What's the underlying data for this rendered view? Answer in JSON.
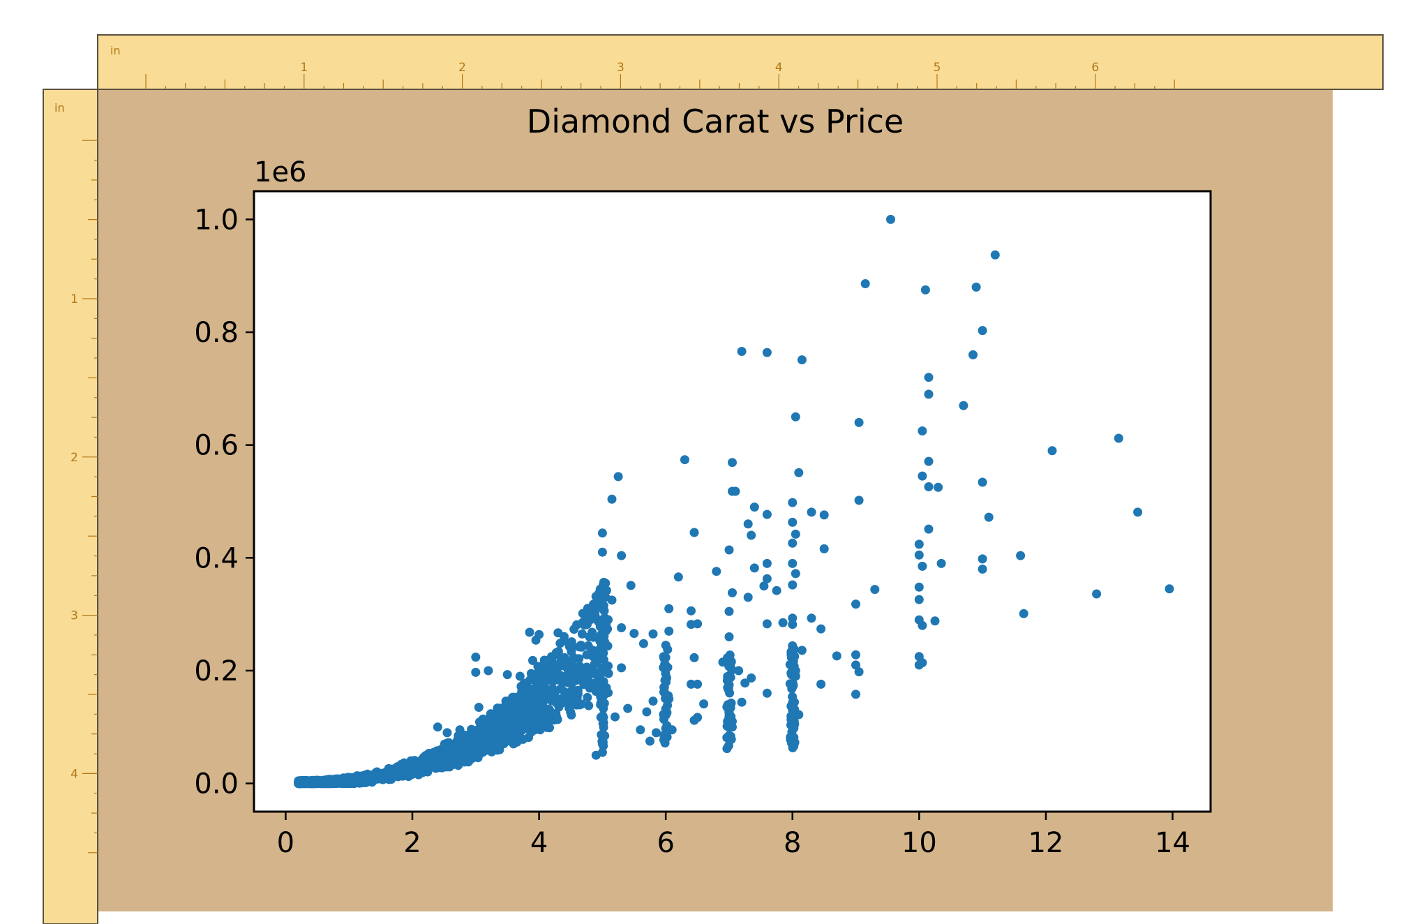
{
  "rulers": {
    "unit_label": "in",
    "top_ticks": [
      "1",
      "2",
      "3",
      "4",
      "5",
      "6"
    ],
    "left_ticks": [
      "1",
      "2",
      "3",
      "4"
    ]
  },
  "colors": {
    "ruler_fill": "#f9dc96",
    "ruler_text": "#b07818",
    "canvas_bg": "#d4b48a",
    "plot_bg": "#ffffff",
    "marker": "#1f77b4",
    "axes": "#000000"
  },
  "chart_data": {
    "type": "scatter",
    "title": "Diamond Carat vs Price",
    "xlabel": "",
    "ylabel": "",
    "y_scale_label": "1e6",
    "xlim": [
      -0.5,
      14.6
    ],
    "ylim": [
      -0.05,
      1.05
    ],
    "x_ticks": [
      "0",
      "2",
      "4",
      "6",
      "8",
      "10",
      "12",
      "14"
    ],
    "y_ticks": [
      "0.0",
      "0.2",
      "0.4",
      "0.6",
      "0.8",
      "1.0"
    ],
    "grid": false,
    "marker_color": "#1f77b4",
    "outliers": [
      [
        9.55,
        1.0
      ],
      [
        11.2,
        0.937
      ],
      [
        9.15,
        0.886
      ],
      [
        10.1,
        0.875
      ],
      [
        10.9,
        0.88
      ],
      [
        11.0,
        0.803
      ],
      [
        7.2,
        0.766
      ],
      [
        7.6,
        0.764
      ],
      [
        8.15,
        0.751
      ],
      [
        10.85,
        0.76
      ],
      [
        10.15,
        0.72
      ],
      [
        10.15,
        0.69
      ],
      [
        10.7,
        0.67
      ],
      [
        8.05,
        0.65
      ],
      [
        9.05,
        0.64
      ],
      [
        10.05,
        0.625
      ],
      [
        13.15,
        0.612
      ],
      [
        12.1,
        0.59
      ],
      [
        6.3,
        0.574
      ],
      [
        7.05,
        0.569
      ],
      [
        10.15,
        0.571
      ],
      [
        5.25,
        0.544
      ],
      [
        8.1,
        0.551
      ],
      [
        10.05,
        0.545
      ],
      [
        11.0,
        0.534
      ],
      [
        7.05,
        0.518
      ],
      [
        7.1,
        0.518
      ],
      [
        10.15,
        0.526
      ],
      [
        10.3,
        0.525
      ],
      [
        5.15,
        0.504
      ],
      [
        9.05,
        0.502
      ],
      [
        8.0,
        0.498
      ],
      [
        7.4,
        0.49
      ],
      [
        7.6,
        0.477
      ],
      [
        8.3,
        0.481
      ],
      [
        8.5,
        0.476
      ],
      [
        13.45,
        0.481
      ],
      [
        11.1,
        0.472
      ],
      [
        7.3,
        0.46
      ],
      [
        8.0,
        0.463
      ],
      [
        10.15,
        0.451
      ],
      [
        5.0,
        0.444
      ],
      [
        6.45,
        0.445
      ],
      [
        7.35,
        0.44
      ],
      [
        8.05,
        0.442
      ],
      [
        10.0,
        0.424
      ],
      [
        5.0,
        0.41
      ],
      [
        5.3,
        0.404
      ],
      [
        7.0,
        0.414
      ],
      [
        8.0,
        0.426
      ],
      [
        8.5,
        0.416
      ],
      [
        11.6,
        0.404
      ],
      [
        10.0,
        0.405
      ],
      [
        11.0,
        0.398
      ],
      [
        7.6,
        0.39
      ],
      [
        8.0,
        0.39
      ],
      [
        10.35,
        0.39
      ],
      [
        6.8,
        0.376
      ],
      [
        7.4,
        0.382
      ],
      [
        8.05,
        0.372
      ],
      [
        10.05,
        0.385
      ],
      [
        11.0,
        0.38
      ],
      [
        6.2,
        0.366
      ],
      [
        7.6,
        0.363
      ],
      [
        8.0,
        0.352
      ],
      [
        5.45,
        0.351
      ],
      [
        7.55,
        0.35
      ],
      [
        7.75,
        0.342
      ],
      [
        9.3,
        0.344
      ],
      [
        10.0,
        0.348
      ],
      [
        12.8,
        0.336
      ],
      [
        13.95,
        0.345
      ],
      [
        7.05,
        0.338
      ],
      [
        7.3,
        0.33
      ],
      [
        10.0,
        0.326
      ],
      [
        4.95,
        0.324
      ],
      [
        5.05,
        0.33
      ],
      [
        5.15,
        0.325
      ],
      [
        9.0,
        0.318
      ],
      [
        11.65,
        0.301
      ],
      [
        6.05,
        0.31
      ],
      [
        6.4,
        0.306
      ],
      [
        7.0,
        0.305
      ],
      [
        8.0,
        0.293
      ],
      [
        8.3,
        0.293
      ],
      [
        10.0,
        0.29
      ],
      [
        10.25,
        0.288
      ],
      [
        5.0,
        0.289
      ],
      [
        5.3,
        0.276
      ],
      [
        6.5,
        0.283
      ],
      [
        7.6,
        0.283
      ],
      [
        8.0,
        0.282
      ],
      [
        8.45,
        0.274
      ],
      [
        3.85,
        0.268
      ],
      [
        4.0,
        0.264
      ],
      [
        4.3,
        0.267
      ],
      [
        5.5,
        0.266
      ],
      [
        5.8,
        0.265
      ],
      [
        6.05,
        0.27
      ],
      [
        6.4,
        0.282
      ],
      [
        7.85,
        0.285
      ],
      [
        10.05,
        0.28
      ],
      [
        7.0,
        0.26
      ],
      [
        3.95,
        0.254
      ],
      [
        4.5,
        0.245
      ],
      [
        5.65,
        0.248
      ],
      [
        6.0,
        0.245
      ],
      [
        8.0,
        0.244
      ],
      [
        8.15,
        0.236
      ],
      [
        8.7,
        0.226
      ],
      [
        9.0,
        0.228
      ],
      [
        10.0,
        0.225
      ],
      [
        3.0,
        0.224
      ],
      [
        6.45,
        0.223
      ],
      [
        10.05,
        0.214
      ],
      [
        3.9,
        0.218
      ],
      [
        7.0,
        0.215
      ],
      [
        9.0,
        0.21
      ],
      [
        10.0,
        0.21
      ],
      [
        3.0,
        0.197
      ],
      [
        3.2,
        0.2
      ],
      [
        3.5,
        0.193
      ],
      [
        3.7,
        0.19
      ],
      [
        4.6,
        0.196
      ],
      [
        7.15,
        0.2
      ],
      [
        8.05,
        0.2
      ],
      [
        9.05,
        0.198
      ],
      [
        5.3,
        0.205
      ],
      [
        6.9,
        0.215
      ],
      [
        7.35,
        0.187
      ],
      [
        8.05,
        0.19
      ],
      [
        8.45,
        0.176
      ],
      [
        6.4,
        0.176
      ],
      [
        6.5,
        0.176
      ],
      [
        7.0,
        0.175
      ],
      [
        7.25,
        0.178
      ],
      [
        7.6,
        0.16
      ],
      [
        9.0,
        0.158
      ],
      [
        8.0,
        0.143
      ],
      [
        8.1,
        0.122
      ],
      [
        6.6,
        0.141
      ],
      [
        7.0,
        0.135
      ],
      [
        7.2,
        0.144
      ],
      [
        6.5,
        0.117
      ],
      [
        6.45,
        0.112
      ],
      [
        7.0,
        0.085
      ],
      [
        7.05,
        0.1
      ],
      [
        7.05,
        0.11
      ],
      [
        7.0,
        0.12
      ],
      [
        4.8,
        0.169
      ],
      [
        4.5,
        0.181
      ],
      [
        4.6,
        0.163
      ],
      [
        5.7,
        0.127
      ],
      [
        5.8,
        0.146
      ],
      [
        6.0,
        0.132
      ],
      [
        6.05,
        0.15
      ],
      [
        6.1,
        0.095
      ],
      [
        5.2,
        0.118
      ],
      [
        5.4,
        0.133
      ],
      [
        5.6,
        0.095
      ],
      [
        5.85,
        0.09
      ],
      [
        5.75,
        0.075
      ],
      [
        3.9,
        0.148
      ],
      [
        4.0,
        0.157
      ],
      [
        4.35,
        0.15
      ],
      [
        3.05,
        0.135
      ],
      [
        3.5,
        0.142
      ],
      [
        2.75,
        0.095
      ],
      [
        2.4,
        0.1
      ],
      [
        2.55,
        0.09
      ],
      [
        5.0,
        0.07
      ],
      [
        5.0,
        0.055
      ],
      [
        4.9,
        0.05
      ]
    ],
    "dense_curve": {
      "x_min": 0.2,
      "x_max": 5.1,
      "price_scale": 0.0044,
      "exponent": 2.45
    }
  }
}
